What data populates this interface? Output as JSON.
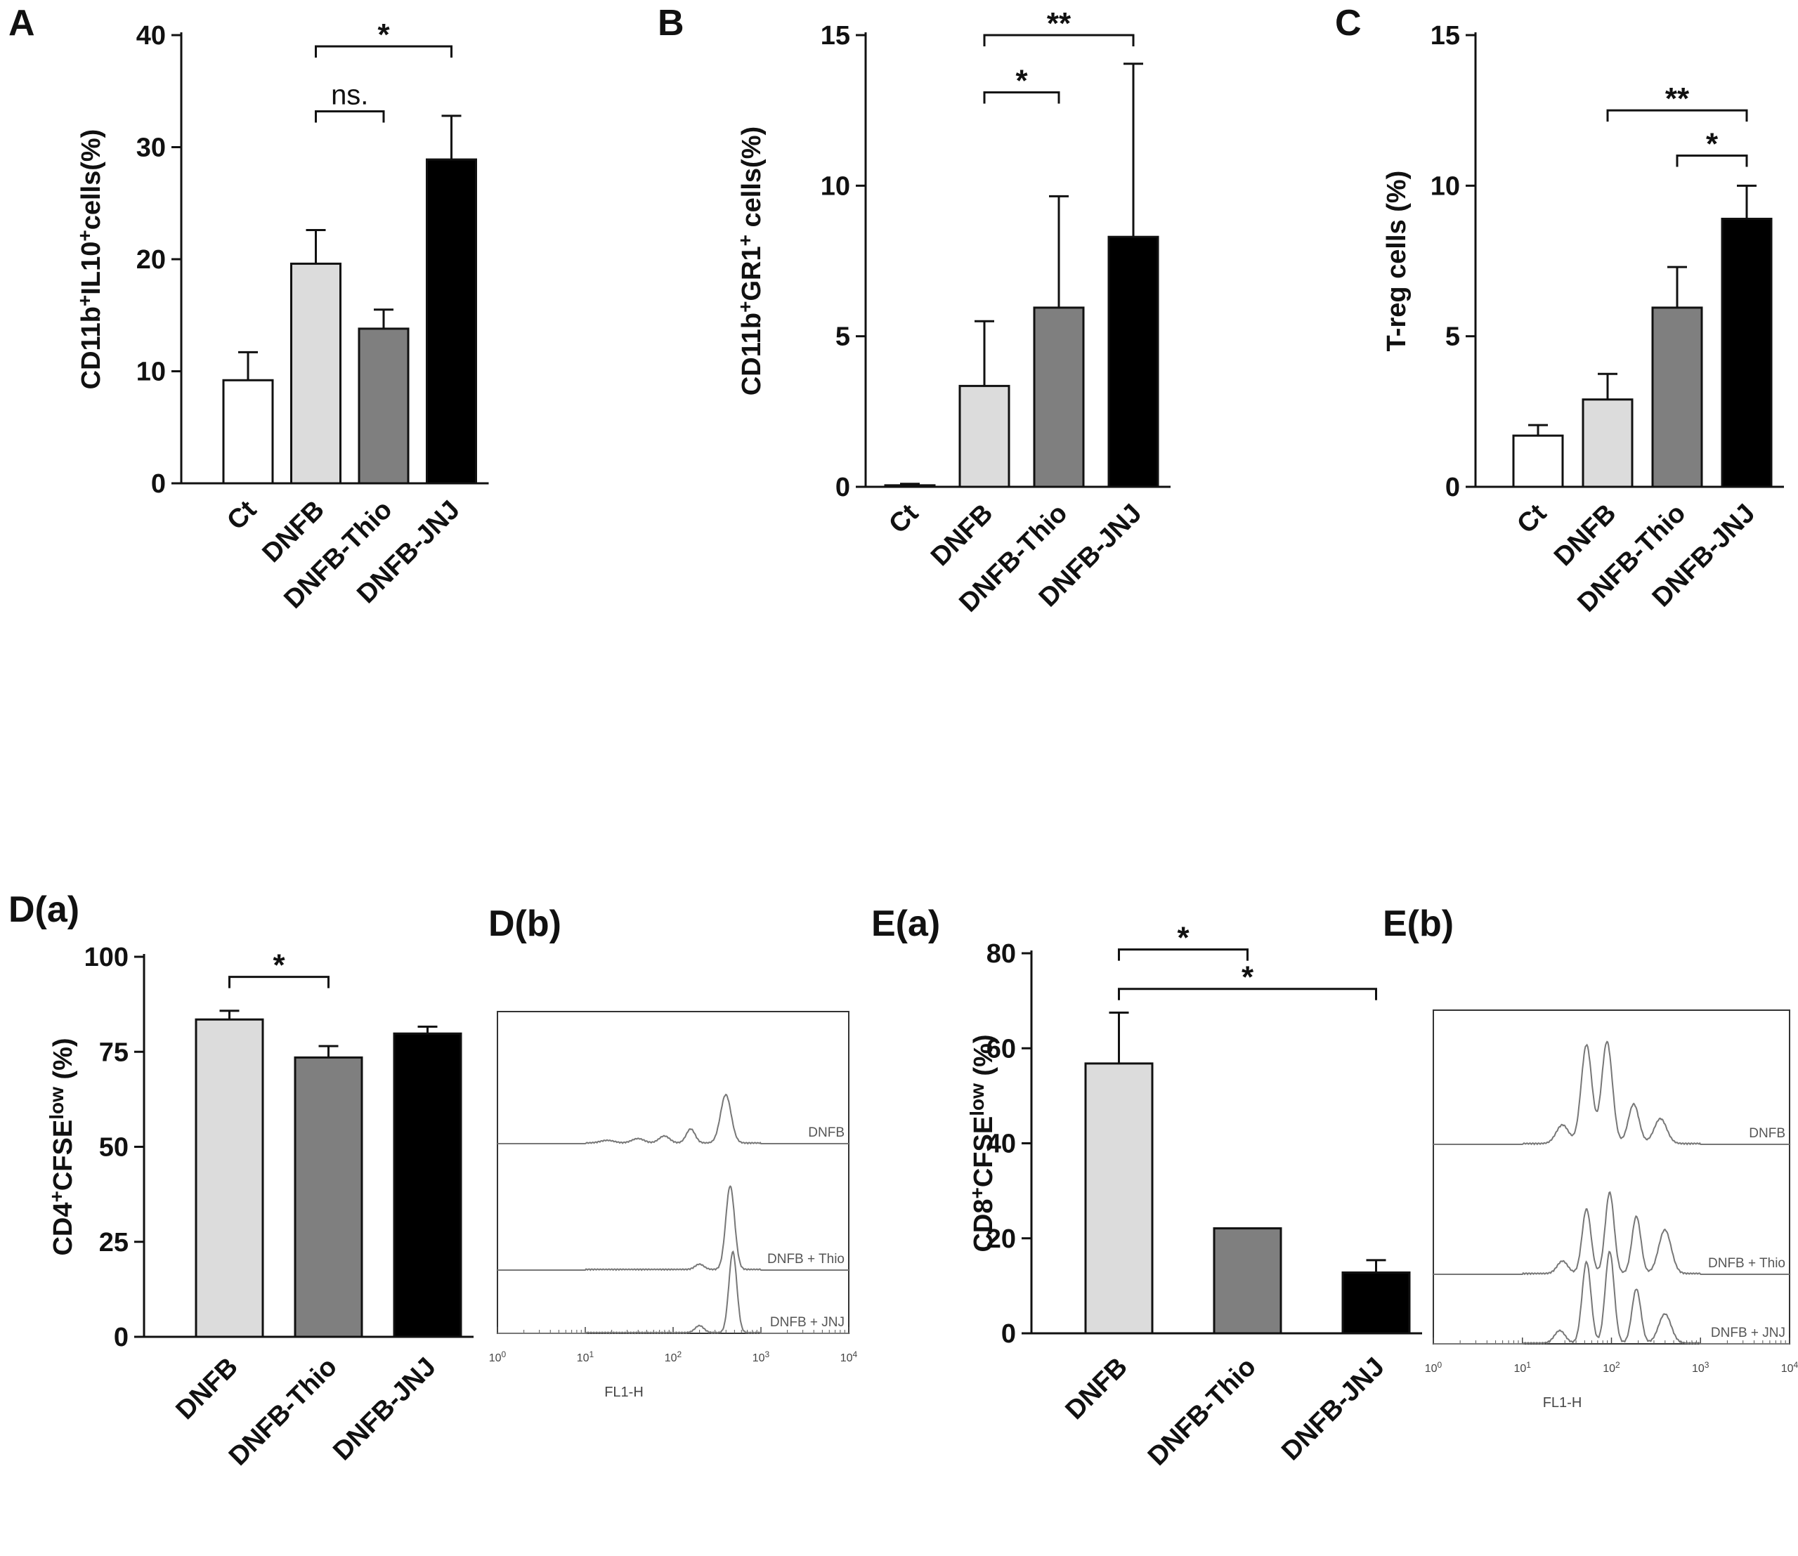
{
  "chart_data": [
    {
      "id": "A",
      "panel_label": "A",
      "type": "bar",
      "ylabel_parts": [
        {
          "t": "CD11b",
          "sup": false
        },
        {
          "t": "+",
          "sup": true
        },
        {
          "t": "IL10",
          "sup": false
        },
        {
          "t": "+",
          "sup": true
        },
        {
          "t": "cells(%)",
          "sup": false
        }
      ],
      "ylim": [
        0,
        40
      ],
      "yticks": [
        0,
        10,
        20,
        30,
        40
      ],
      "categories": [
        "Ct",
        "DNFB",
        "DNFB-Thio",
        "DNFB-JNJ"
      ],
      "values": [
        9.2,
        19.6,
        13.8,
        28.9
      ],
      "errors": [
        2.5,
        3.0,
        1.7,
        3.9
      ],
      "colors": [
        "#ffffff",
        "#dcdcdc",
        "#7f7f7f",
        "#000000"
      ],
      "significance": [
        {
          "from": 1,
          "to": 3,
          "label": "*",
          "y": 39.0
        },
        {
          "from": 1,
          "to": 2,
          "label": "ns.",
          "y": 33.2
        }
      ]
    },
    {
      "id": "B",
      "panel_label": "B",
      "type": "bar",
      "ylabel_parts": [
        {
          "t": "CD11b",
          "sup": false
        },
        {
          "t": "+",
          "sup": true
        },
        {
          "t": "GR1",
          "sup": false
        },
        {
          "t": "+",
          "sup": true
        },
        {
          "t": " cells(%)",
          "sup": false
        }
      ],
      "ylim": [
        0,
        15
      ],
      "yticks": [
        0,
        5,
        10,
        15
      ],
      "categories": [
        "Ct",
        "DNFB",
        "DNFB-Thio",
        "DNFB-JNJ"
      ],
      "values": [
        0.05,
        3.35,
        5.95,
        8.3
      ],
      "errors": [
        0.05,
        2.15,
        3.7,
        5.75
      ],
      "colors": [
        "#ffffff",
        "#dcdcdc",
        "#7f7f7f",
        "#000000"
      ],
      "significance": [
        {
          "from": 1,
          "to": 3,
          "label": "**",
          "y": 15.0
        },
        {
          "from": 1,
          "to": 2,
          "label": "*",
          "y": 13.1
        }
      ]
    },
    {
      "id": "C",
      "panel_label": "C",
      "type": "bar",
      "ylabel_parts": [
        {
          "t": "T-reg cells (%)",
          "sup": false
        }
      ],
      "ylim": [
        0,
        15
      ],
      "yticks": [
        0,
        5,
        10,
        15
      ],
      "categories": [
        "Ct",
        "DNFB",
        "DNFB-Thio",
        "DNFB-JNJ"
      ],
      "values": [
        1.7,
        2.9,
        5.95,
        8.9
      ],
      "errors": [
        0.35,
        0.85,
        1.35,
        1.1
      ],
      "colors": [
        "#ffffff",
        "#dcdcdc",
        "#7f7f7f",
        "#000000"
      ],
      "significance": [
        {
          "from": 1,
          "to": 3,
          "label": "**",
          "y": 12.5
        },
        {
          "from": 2,
          "to": 3,
          "label": "*",
          "y": 11.0
        }
      ]
    },
    {
      "id": "Da",
      "panel_label": "D(a)",
      "type": "bar",
      "ylabel_parts": [
        {
          "t": "CD4",
          "sup": false
        },
        {
          "t": "+",
          "sup": true
        },
        {
          "t": "CFSE",
          "sup": false
        },
        {
          "t": "low",
          "sup": true
        },
        {
          "t": " (%)",
          "sup": false
        }
      ],
      "ylim": [
        0,
        100
      ],
      "yticks": [
        0,
        25,
        50,
        75,
        100
      ],
      "categories": [
        "DNFB",
        "DNFB-Thio",
        "DNFB-JNJ"
      ],
      "values": [
        83.5,
        73.5,
        79.8
      ],
      "errors": [
        2.3,
        3.0,
        1.8
      ],
      "colors": [
        "#dcdcdc",
        "#7f7f7f",
        "#000000"
      ],
      "significance": [
        {
          "from": 0,
          "to": 1,
          "label": "*",
          "y": 94.7
        }
      ]
    },
    {
      "id": "Ea",
      "panel_label": "E(a)",
      "type": "bar",
      "ylabel_parts": [
        {
          "t": "CD8",
          "sup": false
        },
        {
          "t": "+",
          "sup": true
        },
        {
          "t": "CFSE",
          "sup": false
        },
        {
          "t": "low",
          "sup": true
        },
        {
          "t": " (%)",
          "sup": false
        }
      ],
      "ylim": [
        0,
        80
      ],
      "yticks": [
        0,
        20,
        40,
        60,
        80
      ],
      "categories": [
        "DNFB",
        "DNFB-Thio",
        "DNFB-JNJ"
      ],
      "values": [
        56.8,
        22.1,
        12.8
      ],
      "errors": [
        10.7,
        0.0,
        2.6
      ],
      "colors": [
        "#dcdcdc",
        "#7f7f7f",
        "#000000"
      ],
      "significance": [
        {
          "from": 0,
          "to": 1,
          "label": "*",
          "y": 80.8
        },
        {
          "from": 0,
          "to": 2,
          "label": "*",
          "y": 72.5
        }
      ]
    },
    {
      "id": "Db",
      "panel_label": "D(b)",
      "type": "histogram",
      "xlabel": "FL1-H",
      "xticks": [
        {
          "base": "10",
          "exp": "0"
        },
        {
          "base": "10",
          "exp": "1"
        },
        {
          "base": "10",
          "exp": "2"
        },
        {
          "base": "10",
          "exp": "3"
        },
        {
          "base": "10",
          "exp": "4"
        }
      ],
      "traces": [
        {
          "label": "DNFB",
          "peaks": [
            {
              "logx": 2.6,
              "h": 0.55,
              "w": 0.06
            },
            {
              "logx": 2.2,
              "h": 0.16,
              "w": 0.05
            },
            {
              "logx": 1.9,
              "h": 0.08,
              "w": 0.06
            },
            {
              "logx": 1.6,
              "h": 0.05,
              "w": 0.07
            },
            {
              "logx": 1.25,
              "h": 0.03,
              "w": 0.08
            }
          ]
        },
        {
          "label": "DNFB + Thio",
          "peaks": [
            {
              "logx": 2.65,
              "h": 0.95,
              "w": 0.05
            },
            {
              "logx": 2.3,
              "h": 0.06,
              "w": 0.05
            }
          ]
        },
        {
          "label": "DNFB + JNJ",
          "peaks": [
            {
              "logx": 2.68,
              "h": 0.92,
              "w": 0.045
            },
            {
              "logx": 2.3,
              "h": 0.08,
              "w": 0.05
            }
          ]
        }
      ]
    },
    {
      "id": "Eb",
      "panel_label": "E(b)",
      "type": "histogram",
      "xlabel": "FL1-H",
      "xticks": [
        {
          "base": "10",
          "exp": "0"
        },
        {
          "base": "10",
          "exp": "1"
        },
        {
          "base": "10",
          "exp": "2"
        },
        {
          "base": "10",
          "exp": "3"
        },
        {
          "base": "10",
          "exp": "4"
        }
      ],
      "traces": [
        {
          "label": "DNFB",
          "peaks": [
            {
              "logx": 1.72,
              "h": 0.95,
              "w": 0.06
            },
            {
              "logx": 1.95,
              "h": 0.98,
              "w": 0.06
            },
            {
              "logx": 2.25,
              "h": 0.38,
              "w": 0.06
            },
            {
              "logx": 2.55,
              "h": 0.24,
              "w": 0.07
            },
            {
              "logx": 1.45,
              "h": 0.18,
              "w": 0.07
            }
          ]
        },
        {
          "label": "DNFB + Thio",
          "peaks": [
            {
              "logx": 1.72,
              "h": 0.62,
              "w": 0.05
            },
            {
              "logx": 1.98,
              "h": 0.78,
              "w": 0.05
            },
            {
              "logx": 2.28,
              "h": 0.55,
              "w": 0.05
            },
            {
              "logx": 2.6,
              "h": 0.42,
              "w": 0.07
            },
            {
              "logx": 1.45,
              "h": 0.12,
              "w": 0.06
            }
          ]
        },
        {
          "label": "DNFB + JNJ",
          "peaks": [
            {
              "logx": 1.72,
              "h": 0.78,
              "w": 0.05
            },
            {
              "logx": 1.98,
              "h": 0.88,
              "w": 0.05
            },
            {
              "logx": 2.28,
              "h": 0.52,
              "w": 0.05
            },
            {
              "logx": 2.6,
              "h": 0.28,
              "w": 0.07
            },
            {
              "logx": 1.42,
              "h": 0.12,
              "w": 0.06
            }
          ]
        }
      ]
    }
  ]
}
